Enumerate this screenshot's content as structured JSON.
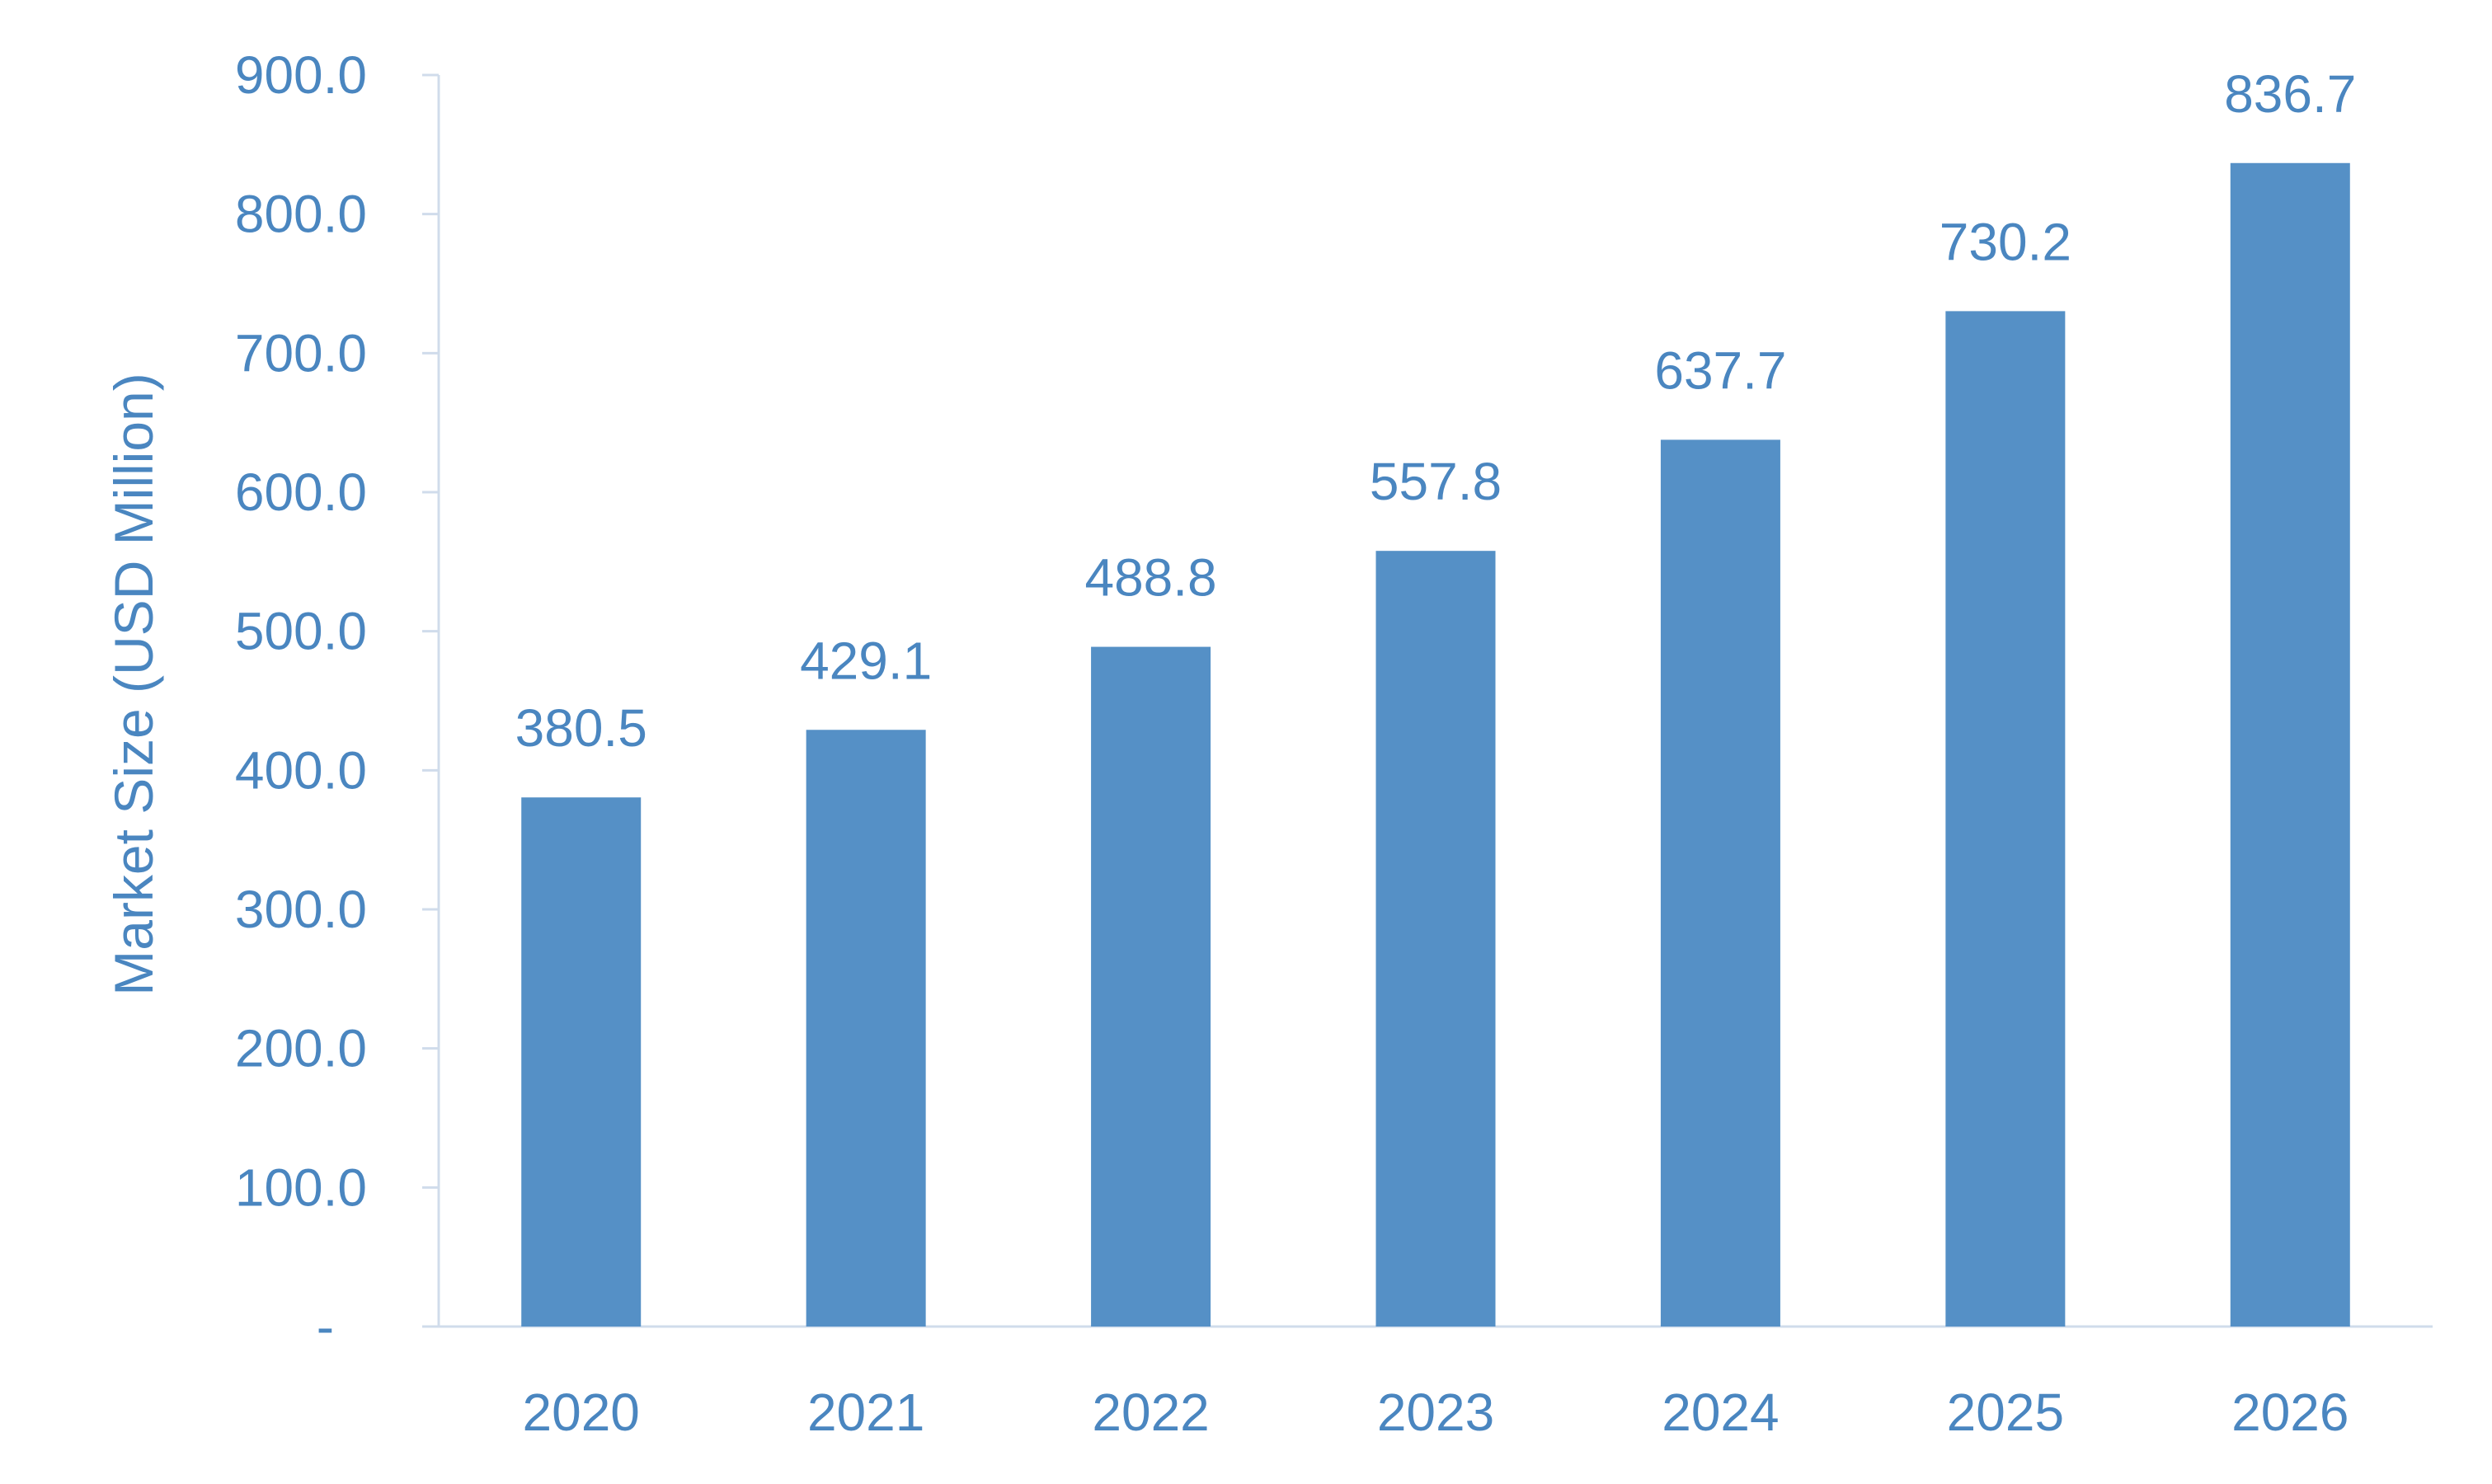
{
  "chart_data": {
    "type": "bar",
    "title": "",
    "xlabel": "",
    "ylabel": "Market Size (USD Million)",
    "categories": [
      "2020",
      "2021",
      "2022",
      "2023",
      "2024",
      "2025",
      "2026"
    ],
    "values": [
      380.5,
      429.1,
      488.8,
      557.8,
      637.7,
      730.2,
      836.7
    ],
    "value_labels": [
      "380.5",
      "429.1",
      "488.8",
      "557.8",
      "637.7",
      "730.2",
      "836.7"
    ],
    "ylim": [
      0,
      900
    ],
    "y_ticks": [
      0,
      100,
      200,
      300,
      400,
      500,
      600,
      700,
      800,
      900
    ],
    "y_tick_labels": [
      "-",
      "100.0",
      "200.0",
      "300.0",
      "400.0",
      "500.0",
      "600.0",
      "700.0",
      "800.0",
      "900.0"
    ],
    "grid": false,
    "legend": "none",
    "colors": {
      "bar": "#5590C6",
      "text": "#4A86C0",
      "axis": "#D0DCEB"
    }
  }
}
